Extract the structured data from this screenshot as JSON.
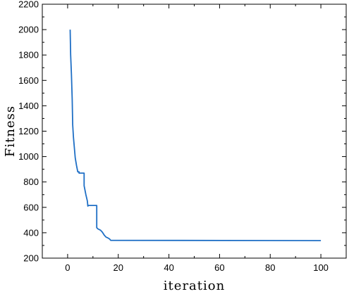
{
  "chart_data": {
    "type": "line",
    "title": "",
    "xlabel": "iteration",
    "ylabel": "Fitness",
    "xlim": [
      -10,
      110
    ],
    "ylim": [
      200,
      2200
    ],
    "xticks": [
      0,
      20,
      40,
      60,
      80,
      100
    ],
    "yticks": [
      200,
      400,
      600,
      800,
      1000,
      1200,
      1400,
      1600,
      1800,
      2000,
      2200
    ],
    "grid": false,
    "line_color": "#1f6fc5",
    "series": [
      {
        "x": [
          1,
          1.2,
          1.5,
          1.8,
          2,
          2.3,
          2.6,
          3,
          3.5,
          4,
          4.5,
          4.5,
          6.5,
          6.5,
          7.2,
          7.8,
          8,
          8.2,
          11.5,
          11.5,
          12,
          13,
          13.7,
          14.5,
          15.2,
          15.8,
          16.5,
          17,
          100
        ],
        "y": [
          2000,
          1800,
          1650,
          1450,
          1250,
          1150,
          1080,
          990,
          930,
          880,
          880,
          870,
          870,
          770,
          700,
          650,
          610,
          615,
          615,
          440,
          430,
          420,
          405,
          380,
          365,
          360,
          352,
          340,
          338
        ]
      }
    ]
  }
}
